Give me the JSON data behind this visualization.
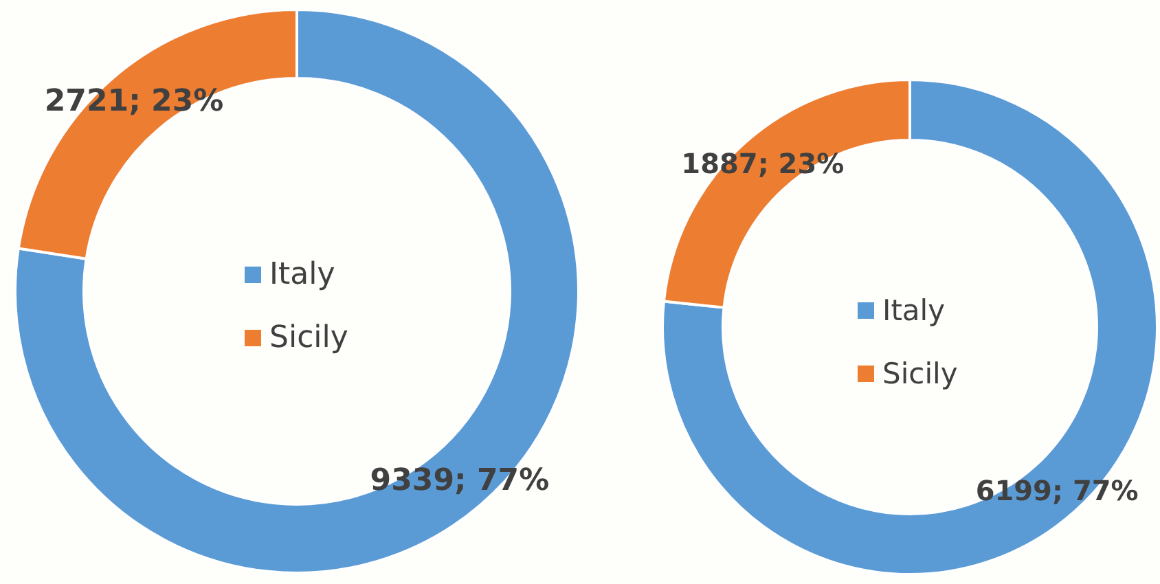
{
  "chart_data": [
    {
      "type": "donut",
      "categories": [
        "Italy",
        "Sicily"
      ],
      "values": [
        9339,
        2721
      ],
      "colors": [
        "#5b9bd5",
        "#ed7d31"
      ],
      "value_labels": [
        "9339; 77%",
        "2721; 23%"
      ],
      "legend": "center"
    },
    {
      "type": "donut",
      "categories": [
        "Italy",
        "Sicily"
      ],
      "values": [
        6199,
        1887
      ],
      "colors": [
        "#5b9bd5",
        "#ed7d31"
      ],
      "value_labels": [
        "6199; 77%",
        "1887; 23%"
      ],
      "legend": "center"
    }
  ]
}
